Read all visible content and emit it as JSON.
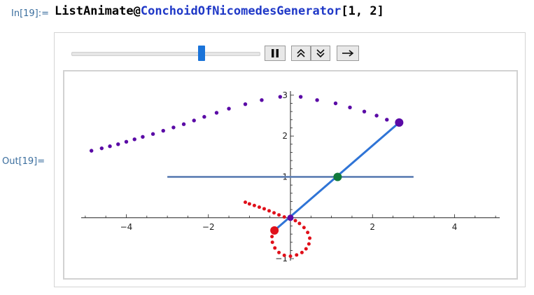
{
  "cell": {
    "in_label": "In[19]:=",
    "out_label": "Out[19]=",
    "input_func": "ListAnimate",
    "input_op": "@",
    "input_generator": "ConchoidOfNicomedesGenerator",
    "input_args": "[1, 2]"
  },
  "controls": {
    "slider_fraction": 0.7,
    "pause_icon": "pause-icon",
    "faster_icon": "double-chevron-up-icon",
    "slower_icon": "double-chevron-down-icon",
    "direction_icon": "right-arrow-icon"
  },
  "colors": {
    "input_symbol": "#1f38c7",
    "label": "#3b6e9e",
    "slider_thumb": "#1a73d9",
    "purple_points": "#5a0aa6",
    "red_points": "#e0101a",
    "blue_line": "#2f74d6",
    "base_line": "#5b7db3",
    "green_point": "#127a3c"
  },
  "chart_data": {
    "type": "scatter",
    "title": "",
    "xlabel": "",
    "ylabel": "",
    "xlim": [
      -5.1,
      5.1
    ],
    "ylim": [
      -1.05,
      3.1
    ],
    "xticks": [
      -4,
      -2,
      2,
      4
    ],
    "yticks": [
      -1,
      1,
      2,
      3
    ],
    "x_tick_labels": [
      "−4",
      "−2",
      "2",
      "4"
    ],
    "y_tick_labels": [
      "−1",
      "1",
      "2",
      "3"
    ],
    "line_y1": {
      "y": 1,
      "x_from": -3,
      "x_to": 3
    },
    "series": [
      {
        "points": [
          [
            -4.85,
            1.64
          ],
          [
            -4.6,
            1.7
          ],
          [
            -4.4,
            1.75
          ],
          [
            -4.2,
            1.8
          ],
          [
            -4.0,
            1.86
          ],
          [
            -3.8,
            1.92
          ],
          [
            -3.6,
            1.98
          ],
          [
            -3.35,
            2.05
          ],
          [
            -3.1,
            2.13
          ],
          [
            -2.85,
            2.21
          ],
          [
            -2.6,
            2.29
          ],
          [
            -2.35,
            2.38
          ],
          [
            -2.1,
            2.47
          ],
          [
            -1.8,
            2.57
          ],
          [
            -1.5,
            2.67
          ],
          [
            -1.1,
            2.78
          ],
          [
            -0.7,
            2.88
          ],
          [
            -0.25,
            2.96
          ],
          [
            0.25,
            2.96
          ],
          [
            0.65,
            2.88
          ],
          [
            1.1,
            2.8
          ],
          [
            1.45,
            2.7
          ],
          [
            1.8,
            2.6
          ],
          [
            2.1,
            2.5
          ],
          [
            2.35,
            2.4
          ],
          [
            2.65,
            2.33
          ]
        ]
      },
      {
        "points": [
          [
            -1.1,
            0.38
          ],
          [
            -1.0,
            0.34
          ],
          [
            -0.88,
            0.3
          ],
          [
            -0.76,
            0.26
          ],
          [
            -0.64,
            0.22
          ],
          [
            -0.52,
            0.17
          ],
          [
            -0.4,
            0.12
          ],
          [
            -0.28,
            0.07
          ],
          [
            -0.15,
            0.02
          ],
          [
            0.0,
            -0.02
          ],
          [
            0.12,
            -0.07
          ],
          [
            0.22,
            -0.14
          ],
          [
            0.33,
            -0.24
          ],
          [
            0.42,
            -0.36
          ],
          [
            0.47,
            -0.5
          ],
          [
            0.45,
            -0.64
          ],
          [
            0.38,
            -0.76
          ],
          [
            0.28,
            -0.85
          ],
          [
            0.15,
            -0.91
          ],
          [
            0.0,
            -0.94
          ],
          [
            -0.15,
            -0.92
          ],
          [
            -0.28,
            -0.85
          ],
          [
            -0.38,
            -0.74
          ],
          [
            -0.44,
            -0.6
          ],
          [
            -0.45,
            -0.46
          ],
          [
            -0.39,
            -0.31
          ]
        ]
      }
    ],
    "segment": {
      "from": [
        -0.39,
        -0.31
      ],
      "to": [
        2.65,
        2.33
      ]
    },
    "highlight_points": [
      {
        "name": "purple-end",
        "x": 2.65,
        "y": 2.33,
        "color": "#5a0aa6"
      },
      {
        "name": "red-end",
        "x": -0.39,
        "y": -0.31,
        "color": "#e0101a"
      },
      {
        "name": "green-intersection",
        "x": 1.15,
        "y": 1.0,
        "color": "#127a3c"
      },
      {
        "name": "origin",
        "x": 0.0,
        "y": 0.0,
        "color": "#5a0aa6"
      }
    ]
  }
}
